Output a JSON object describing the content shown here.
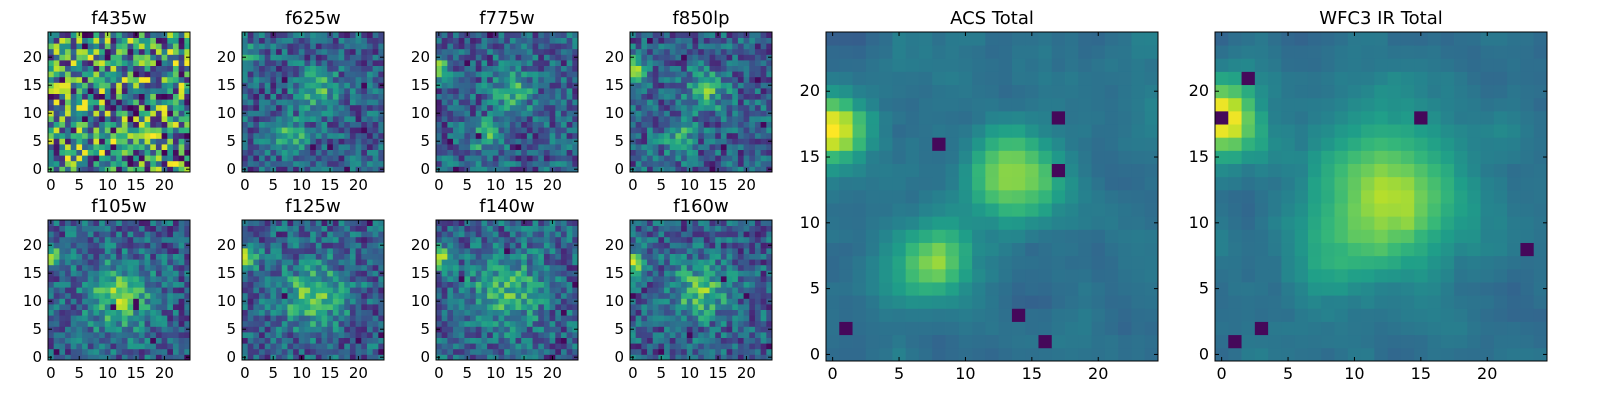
{
  "chart_data": [
    {
      "type": "heatmap",
      "title": "f435w",
      "colormap": "viridis",
      "xlim": [
        0,
        25
      ],
      "ylim": [
        0,
        25
      ],
      "xticks": [
        0,
        5,
        10,
        15,
        20
      ],
      "yticks": [
        0,
        5,
        10,
        15,
        20
      ],
      "pattern": "noise",
      "blobs": []
    },
    {
      "type": "heatmap",
      "title": "f625w",
      "colormap": "viridis",
      "xlim": [
        0,
        25
      ],
      "ylim": [
        0,
        25
      ],
      "xticks": [
        0,
        5,
        10,
        15,
        20
      ],
      "yticks": [
        0,
        5,
        10,
        15,
        20
      ],
      "pattern": "source",
      "blobs": [
        {
          "x": 8,
          "y": 6,
          "amp": 0.35,
          "s": 2.0
        },
        {
          "x": 13,
          "y": 14,
          "amp": 0.35,
          "s": 2.5
        },
        {
          "x": 0,
          "y": 20,
          "amp": 0.3,
          "s": 1.5
        }
      ]
    },
    {
      "type": "heatmap",
      "title": "f775w",
      "colormap": "viridis",
      "xlim": [
        0,
        25
      ],
      "ylim": [
        0,
        25
      ],
      "xticks": [
        0,
        5,
        10,
        15,
        20
      ],
      "yticks": [
        0,
        5,
        10,
        15,
        20
      ],
      "pattern": "source",
      "blobs": [
        {
          "x": 8,
          "y": 6,
          "amp": 0.35,
          "s": 2.0
        },
        {
          "x": 13,
          "y": 14,
          "amp": 0.35,
          "s": 2.5
        },
        {
          "x": 0,
          "y": 18,
          "amp": 0.45,
          "s": 1.5
        }
      ]
    },
    {
      "type": "heatmap",
      "title": "f850lp",
      "colormap": "viridis",
      "xlim": [
        0,
        25
      ],
      "ylim": [
        0,
        25
      ],
      "xticks": [
        0,
        5,
        10,
        15,
        20
      ],
      "yticks": [
        0,
        5,
        10,
        15,
        20
      ],
      "pattern": "source",
      "blobs": [
        {
          "x": 8,
          "y": 6,
          "amp": 0.3,
          "s": 2.0
        },
        {
          "x": 13,
          "y": 14,
          "amp": 0.35,
          "s": 2.5
        },
        {
          "x": 0,
          "y": 18,
          "amp": 0.5,
          "s": 1.5
        }
      ]
    },
    {
      "type": "heatmap",
      "title": "f105w",
      "colormap": "viridis",
      "xlim": [
        0,
        25
      ],
      "ylim": [
        0,
        25
      ],
      "xticks": [
        0,
        5,
        10,
        15,
        20
      ],
      "yticks": [
        0,
        5,
        10,
        15,
        20
      ],
      "pattern": "source",
      "blobs": [
        {
          "x": 12,
          "y": 11,
          "amp": 0.45,
          "s": 4.0
        },
        {
          "x": 0,
          "y": 18,
          "amp": 0.5,
          "s": 1.5
        }
      ]
    },
    {
      "type": "heatmap",
      "title": "f125w",
      "colormap": "viridis",
      "xlim": [
        0,
        25
      ],
      "ylim": [
        0,
        25
      ],
      "xticks": [
        0,
        5,
        10,
        15,
        20
      ],
      "yticks": [
        0,
        5,
        10,
        15,
        20
      ],
      "pattern": "source",
      "blobs": [
        {
          "x": 12,
          "y": 11,
          "amp": 0.4,
          "s": 4.0
        },
        {
          "x": 0,
          "y": 18,
          "amp": 0.55,
          "s": 1.5
        }
      ]
    },
    {
      "type": "heatmap",
      "title": "f140w",
      "colormap": "viridis",
      "xlim": [
        0,
        25
      ],
      "ylim": [
        0,
        25
      ],
      "xticks": [
        0,
        5,
        10,
        15,
        20
      ],
      "yticks": [
        0,
        5,
        10,
        15,
        20
      ],
      "pattern": "source",
      "blobs": [
        {
          "x": 12,
          "y": 12,
          "amp": 0.35,
          "s": 4.5
        },
        {
          "x": 0,
          "y": 18,
          "amp": 0.5,
          "s": 1.5
        }
      ]
    },
    {
      "type": "heatmap",
      "title": "f160w",
      "colormap": "viridis",
      "xlim": [
        0,
        25
      ],
      "ylim": [
        0,
        25
      ],
      "xticks": [
        0,
        5,
        10,
        15,
        20
      ],
      "yticks": [
        0,
        5,
        10,
        15,
        20
      ],
      "pattern": "source",
      "blobs": [
        {
          "x": 12,
          "y": 12,
          "amp": 0.4,
          "s": 3.5
        },
        {
          "x": 0,
          "y": 17,
          "amp": 0.55,
          "s": 1.5
        }
      ]
    },
    {
      "type": "heatmap",
      "title": "ACS Total",
      "colormap": "viridis",
      "xlim": [
        0,
        25
      ],
      "ylim": [
        0,
        25
      ],
      "xticks": [
        0,
        5,
        10,
        15,
        20
      ],
      "yticks": [
        0,
        5,
        10,
        15,
        20
      ],
      "pattern": "smooth",
      "blobs": [
        {
          "x": 7.5,
          "y": 7,
          "amp": 0.5,
          "s": 2.0
        },
        {
          "x": 13.5,
          "y": 13.5,
          "amp": 0.45,
          "s": 2.5
        },
        {
          "x": 0,
          "y": 17,
          "amp": 0.6,
          "s": 1.8
        }
      ]
    },
    {
      "type": "heatmap",
      "title": "WFC3 IR Total",
      "colormap": "viridis",
      "xlim": [
        0,
        25
      ],
      "ylim": [
        0,
        25
      ],
      "xticks": [
        0,
        5,
        10,
        15,
        20
      ],
      "yticks": [
        0,
        5,
        10,
        15,
        20
      ],
      "pattern": "smooth",
      "blobs": [
        {
          "x": 12.5,
          "y": 12,
          "amp": 0.5,
          "s": 4.0
        },
        {
          "x": 8,
          "y": 7,
          "amp": 0.15,
          "s": 2.0
        },
        {
          "x": 0,
          "y": 18,
          "amp": 0.65,
          "s": 2.0
        }
      ]
    }
  ]
}
